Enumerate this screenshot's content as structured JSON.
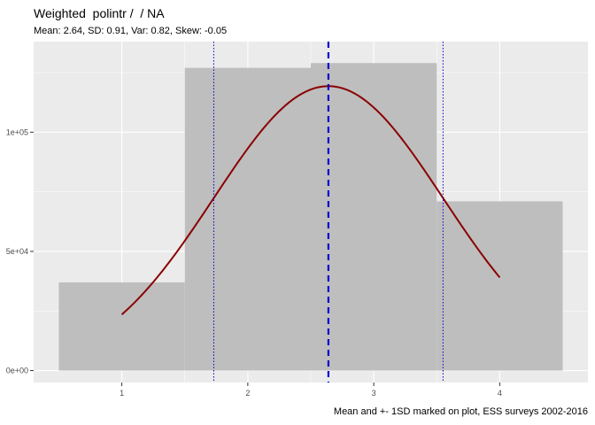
{
  "chart_data": {
    "type": "bar",
    "title": "Weighted  polintr /  / NA",
    "subtitle": "Mean: 2.64, SD: 0.91, Var: 0.82, Skew: -0.05",
    "caption": "Mean and +- 1SD marked on plot, ESS surveys 2002-2016",
    "xlabel": "",
    "ylabel": "",
    "categories": [
      1,
      2,
      3,
      4
    ],
    "values": [
      37000,
      127000,
      129000,
      71000
    ],
    "xlim": [
      0.3,
      4.7
    ],
    "ylim": [
      -5000,
      138000
    ],
    "x_ticks": [
      1,
      2,
      3,
      4
    ],
    "x_tick_labels": [
      "1",
      "2",
      "3",
      "4"
    ],
    "y_ticks": [
      0,
      50000,
      100000
    ],
    "y_tick_labels": [
      "0e+00",
      "5e+04",
      "1e+05"
    ],
    "mean": 2.64,
    "sd": 0.91,
    "grid": true,
    "legend": "none",
    "colors": {
      "bar": "#bebebe",
      "panel": "#ebebeb",
      "curve": "#8b0000",
      "mean_line": "#0000cd",
      "sd_line": "#0000cd"
    }
  }
}
